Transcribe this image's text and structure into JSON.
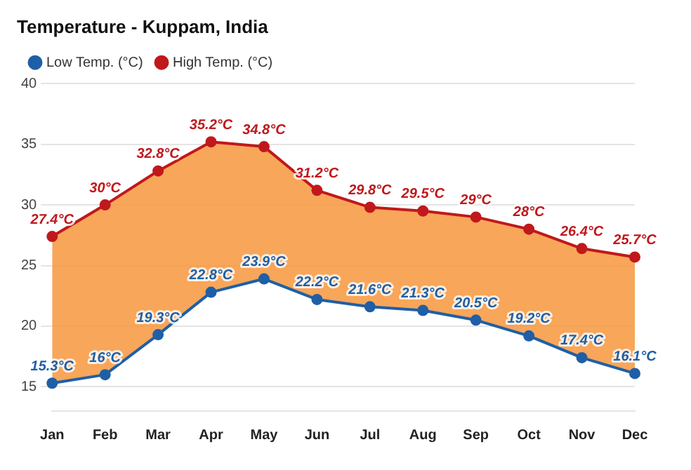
{
  "chart_data": {
    "type": "line",
    "title": "Temperature - Kuppam, India",
    "categories": [
      "Jan",
      "Feb",
      "Mar",
      "Apr",
      "May",
      "Jun",
      "Jul",
      "Aug",
      "Sep",
      "Oct",
      "Nov",
      "Dec"
    ],
    "series": [
      {
        "name": "Low Temp. (°C)",
        "type": "line",
        "color": "#1f5fa6",
        "values": [
          15.3,
          16,
          19.3,
          22.8,
          23.9,
          22.2,
          21.6,
          21.3,
          20.5,
          19.2,
          17.4,
          16.1
        ],
        "value_labels": [
          "15.3°C",
          "16°C",
          "19.3°C",
          "22.8°C",
          "23.9°C",
          "22.2°C",
          "21.6°C",
          "21.3°C",
          "20.5°C",
          "19.2°C",
          "17.4°C",
          "16.1°C"
        ]
      },
      {
        "name": "High Temp. (°C)",
        "type": "area",
        "color": "#c0191c",
        "values": [
          27.4,
          30,
          32.8,
          35.2,
          34.8,
          31.2,
          29.8,
          29.5,
          29,
          28,
          26.4,
          25.7
        ],
        "value_labels": [
          "27.4°C",
          "30°C",
          "32.8°C",
          "35.2°C",
          "34.8°C",
          "31.2°C",
          "29.8°C",
          "29.5°C",
          "29°C",
          "28°C",
          "26.4°C",
          "25.7°C"
        ]
      }
    ],
    "ylim": [
      13,
      40
    ],
    "yticks": [
      15,
      20,
      25,
      30,
      35,
      40
    ],
    "grid": "y",
    "legend": "top left",
    "marker": "circle"
  }
}
